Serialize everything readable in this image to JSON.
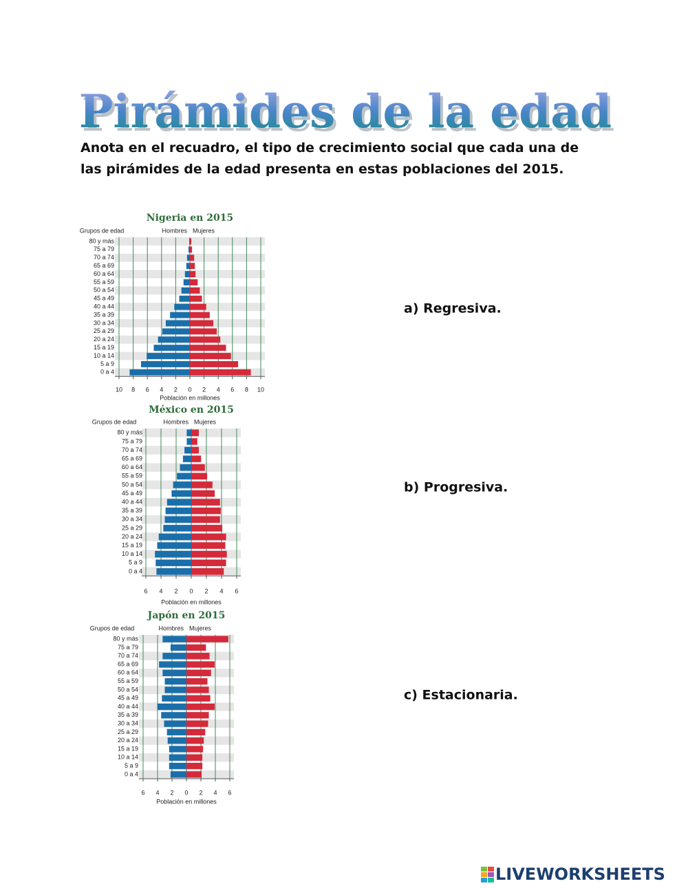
{
  "title": "Pirámides de la edad",
  "instructions": "Anota en el recuadro, el tipo de crecimiento social que cada una de las pirámides de la edad presenta en estas poblaciones del 2015.",
  "answers": [
    "a) Regresiva.",
    "b) Progresiva.",
    "c) Estacionaria."
  ],
  "brand": "LIVEWORKSHEETS",
  "chart_data": [
    {
      "type": "pyramid",
      "title": "Nigeria en 2015",
      "group_label": "Grupos de edad",
      "x_label": "Población en millones",
      "categories": [
        "80 y más",
        "75 a 79",
        "70 a 74",
        "65 a 69",
        "60 a 64",
        "55 a 59",
        "50 a 54",
        "45 a 49",
        "40 a 44",
        "35 a 39",
        "30 a 34",
        "25 a 29",
        "20 a 24",
        "15 a 19",
        "10 a 14",
        "5 a 9",
        "0 a 4"
      ],
      "series": [
        {
          "name": "Hombres",
          "color": "#1a6fab",
          "values": [
            0.1,
            0.2,
            0.4,
            0.5,
            0.7,
            0.9,
            1.2,
            1.5,
            2.2,
            2.8,
            3.4,
            3.9,
            4.5,
            5.1,
            6.1,
            6.9,
            8.5
          ]
        },
        {
          "name": "Mujeres",
          "color": "#d42a3a",
          "values": [
            0.2,
            0.3,
            0.6,
            0.7,
            0.8,
            1.1,
            1.4,
            1.7,
            2.3,
            2.8,
            3.3,
            3.8,
            4.3,
            5.1,
            5.8,
            6.8,
            8.6
          ]
        }
      ],
      "xlim": [
        0,
        10
      ],
      "xticks": [
        0,
        2,
        4,
        6,
        8,
        10
      ],
      "grid": true
    },
    {
      "type": "pyramid",
      "title": "México en 2015",
      "group_label": "Grupos de edad",
      "x_label": "Población en millones",
      "categories": [
        "80 y más",
        "75 a 79",
        "70 a 74",
        "65 a 69",
        "60 a 64",
        "55 a 59",
        "50 a 54",
        "45 a 49",
        "40 a 44",
        "35 a 39",
        "30 a 34",
        "25 a 29",
        "20 a 24",
        "15 a 19",
        "10 a 14",
        "5 a 9",
        "0 a 4"
      ],
      "series": [
        {
          "name": "Hombres",
          "color": "#1a6fab",
          "values": [
            0.6,
            0.6,
            0.9,
            1.1,
            1.5,
            1.9,
            2.4,
            2.6,
            3.2,
            3.4,
            3.5,
            3.7,
            4.3,
            4.5,
            4.8,
            4.7,
            4.6
          ]
        },
        {
          "name": "Mujeres",
          "color": "#d42a3a",
          "values": [
            1.0,
            0.8,
            1.0,
            1.3,
            1.8,
            2.1,
            2.8,
            3.1,
            3.8,
            3.9,
            3.8,
            4.1,
            4.6,
            4.5,
            4.7,
            4.6,
            4.3
          ]
        }
      ],
      "xlim": [
        0,
        6
      ],
      "xticks": [
        0,
        2,
        4,
        6
      ],
      "grid": true
    },
    {
      "type": "pyramid",
      "title": "Japón en 2015",
      "group_label": "Grupos de edad",
      "x_label": "Población en millones",
      "categories": [
        "80 y más",
        "75 a 79",
        "70 a 74",
        "65 a 69",
        "60 a 64",
        "55 a 59",
        "50 a 54",
        "45 a 49",
        "40 a 44",
        "35 a 39",
        "30 a 34",
        "25 a 29",
        "20 a 24",
        "15 a 19",
        "10 a 14",
        "5 a 9",
        "0 a 4"
      ],
      "series": [
        {
          "name": "Hombres",
          "color": "#1a6fab",
          "values": [
            3.3,
            2.2,
            3.3,
            3.8,
            3.3,
            3.0,
            3.0,
            3.4,
            4.0,
            3.5,
            3.1,
            2.7,
            2.6,
            2.4,
            2.4,
            2.4,
            2.2
          ]
        },
        {
          "name": "Mujeres",
          "color": "#d42a3a",
          "values": [
            5.8,
            2.7,
            3.2,
            3.9,
            3.4,
            2.9,
            3.1,
            3.3,
            3.9,
            3.1,
            3.0,
            2.6,
            2.4,
            2.3,
            2.2,
            2.2,
            2.1
          ]
        }
      ],
      "xlim": [
        0,
        6
      ],
      "xticks": [
        0,
        2,
        4,
        6
      ],
      "grid": true
    }
  ]
}
